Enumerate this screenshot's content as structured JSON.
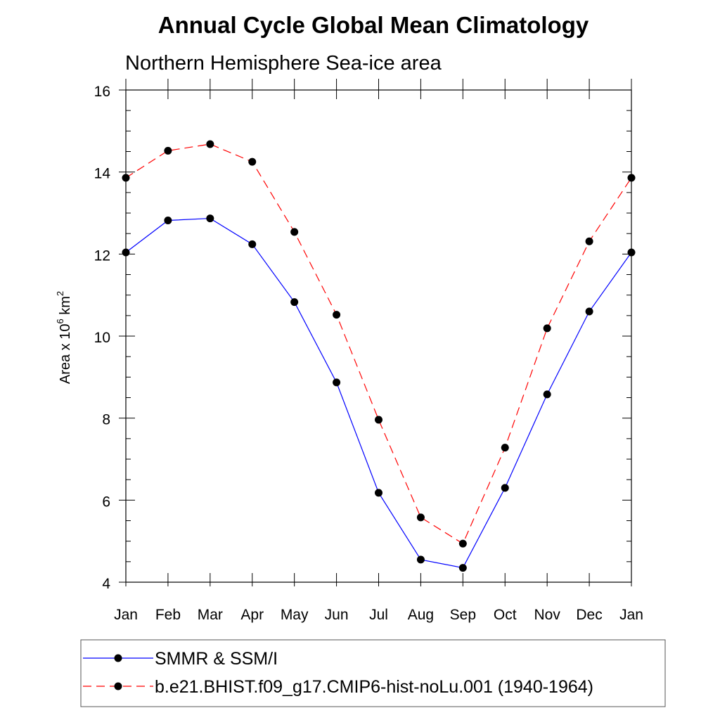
{
  "chart_data": {
    "type": "line",
    "title": "Annual Cycle Global Mean Climatology",
    "subtitle": "Northern Hemisphere Sea-ice area",
    "ylabel_base": "Area x 10",
    "ylabel_exp1": "6",
    "ylabel_unit": " km",
    "ylabel_exp2": "2",
    "xlabel": "",
    "categories": [
      "Jan",
      "Feb",
      "Mar",
      "Apr",
      "May",
      "Jun",
      "Jul",
      "Aug",
      "Sep",
      "Oct",
      "Nov",
      "Dec",
      "Jan"
    ],
    "ylim": [
      4,
      16
    ],
    "yticks": [
      4,
      6,
      8,
      10,
      12,
      14,
      16
    ],
    "series": [
      {
        "name": "SMMR & SSM/I",
        "color": "#0000ff",
        "dash": "solid",
        "values": [
          12.04,
          12.82,
          12.87,
          12.24,
          10.83,
          8.87,
          6.18,
          4.55,
          4.35,
          6.3,
          8.58,
          10.6,
          12.04
        ]
      },
      {
        "name": "b.e21.BHIST.f09_g17.CMIP6-hist-noLu.001 (1940-1964)",
        "color": "#ff0000",
        "dash": "dashed",
        "values": [
          13.86,
          14.52,
          14.68,
          14.25,
          12.54,
          10.52,
          7.96,
          5.58,
          4.94,
          7.28,
          10.19,
          12.31,
          13.86
        ]
      }
    ],
    "legend_position": "bottom"
  }
}
